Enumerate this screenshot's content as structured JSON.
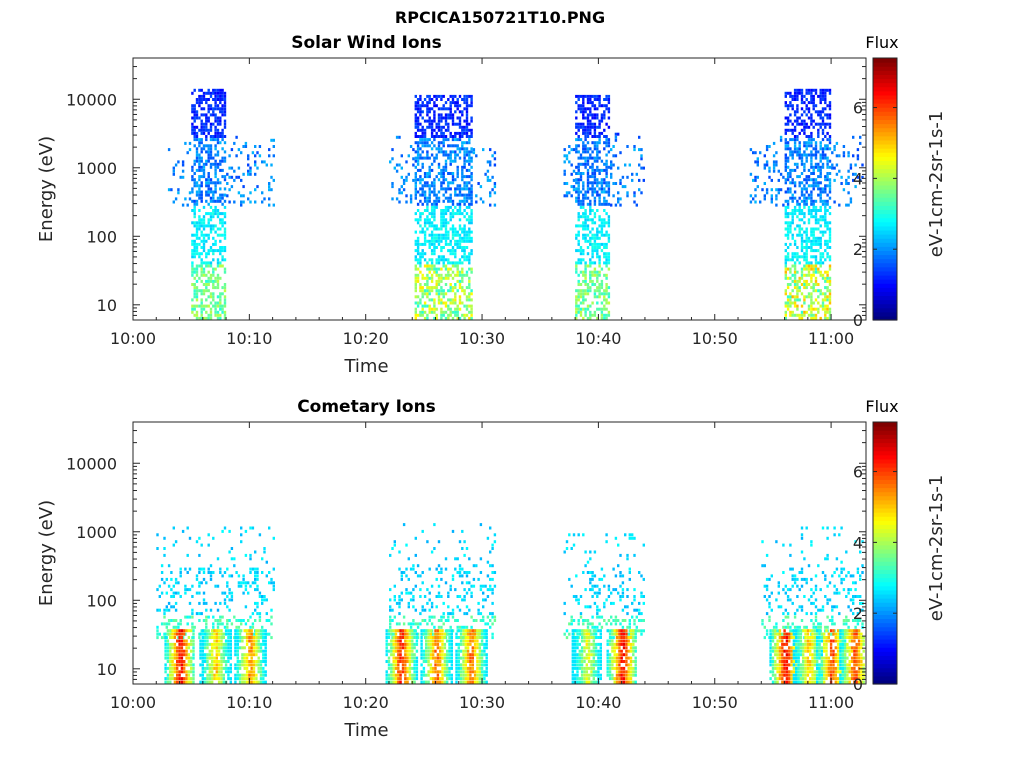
{
  "figure": {
    "title": "RPCICA150721T10.PNG"
  },
  "chart_data": [
    {
      "type": "heatmap",
      "title": "Solar Wind Ions",
      "xlabel": "Time",
      "ylabel": "Energy (eV)",
      "x_ticks": [
        "10:00",
        "10:10",
        "10:20",
        "10:30",
        "10:40",
        "10:50",
        "11:00"
      ],
      "xlim_minutes": [
        0,
        63
      ],
      "y_scale": "log",
      "y_ticks": [
        "10",
        "100",
        "1000",
        "10000"
      ],
      "ylim": [
        6,
        40000
      ],
      "colorbar": {
        "title": "Flux",
        "label": "eV-1cm-2sr-1s-1",
        "ticks": [
          "0",
          "2",
          "4",
          "6"
        ],
        "range": [
          0,
          7.4
        ]
      },
      "bursts": [
        {
          "start": "10:03",
          "end": "10:12",
          "core_start": "10:05",
          "core_end": "10:08",
          "max_energy_eV": 15000,
          "low_energy_peak_flux": 4.2
        },
        {
          "start": "10:22",
          "end": "10:31",
          "core_start": "10:24",
          "core_end": "10:29",
          "max_energy_eV": 12000,
          "low_energy_peak_flux": 4.8
        },
        {
          "start": "10:37",
          "end": "10:44",
          "core_start": "10:38",
          "core_end": "10:41",
          "max_energy_eV": 12000,
          "low_energy_peak_flux": 4.2
        },
        {
          "start": "10:53",
          "end": "11:03",
          "core_start": "10:56",
          "core_end": "11:00",
          "max_energy_eV": 15000,
          "low_energy_peak_flux": 5.2
        }
      ]
    },
    {
      "type": "heatmap",
      "title": "Cometary Ions",
      "xlabel": "Time",
      "ylabel": "Energy (eV)",
      "x_ticks": [
        "10:00",
        "10:10",
        "10:20",
        "10:30",
        "10:40",
        "10:50",
        "11:00"
      ],
      "xlim_minutes": [
        0,
        63
      ],
      "y_scale": "log",
      "y_ticks": [
        "10",
        "100",
        "1000",
        "10000"
      ],
      "ylim": [
        6,
        40000
      ],
      "colorbar": {
        "title": "Flux",
        "label": "eV-1cm-2sr-1s-1",
        "ticks": [
          "0",
          "2",
          "4",
          "6"
        ],
        "range": [
          0,
          7.4
        ]
      },
      "bursts": [
        {
          "start": "10:02",
          "end": "10:12",
          "max_energy_eV": 1200,
          "peaks": [
            {
              "time": "10:04",
              "flux": 7.0
            },
            {
              "time": "10:07",
              "flux": 5.5
            },
            {
              "time": "10:10",
              "flux": 6.0
            }
          ]
        },
        {
          "start": "10:22",
          "end": "10:31",
          "max_energy_eV": 1500,
          "peaks": [
            {
              "time": "10:23",
              "flux": 6.8
            },
            {
              "time": "10:26",
              "flux": 6.2
            },
            {
              "time": "10:29",
              "flux": 6.2
            }
          ]
        },
        {
          "start": "10:37",
          "end": "10:44",
          "max_energy_eV": 1000,
          "peaks": [
            {
              "time": "10:39",
              "flux": 5.0
            },
            {
              "time": "10:42",
              "flux": 7.0
            }
          ]
        },
        {
          "start": "10:54",
          "end": "11:03",
          "max_energy_eV": 1200,
          "peaks": [
            {
              "time": "10:56",
              "flux": 7.0
            },
            {
              "time": "10:58",
              "flux": 5.5
            },
            {
              "time": "11:00",
              "flux": 6.5
            },
            {
              "time": "11:02",
              "flux": 6.5
            }
          ]
        }
      ]
    }
  ]
}
